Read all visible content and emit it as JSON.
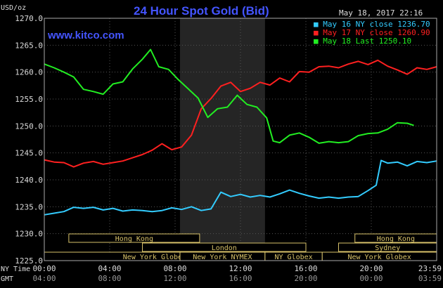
{
  "header": {
    "title": "24 Hour Spot Gold (Bid)",
    "date": "May 18, 2017 22:16",
    "unit": "USD/oz",
    "site": "www.kitco.com"
  },
  "legend": [
    {
      "label": "May 16 NY close 1236.70",
      "color": "#33ccff"
    },
    {
      "label": "May 17 NY close 1260.90",
      "color": "#ff2020"
    },
    {
      "label": "May 18 Last 1250.10",
      "color": "#22ee22"
    }
  ],
  "markets": [
    {
      "label": "Hong Kong",
      "start": 1.5,
      "end": 9.5
    },
    {
      "label": "London",
      "start": 6.0,
      "end": 16.0
    },
    {
      "label": "New York Globex",
      "start": 0.0,
      "end": 13.5
    },
    {
      "label": "New York NYMEX",
      "start": 8.3,
      "end": 13.5
    },
    {
      "label": "NY Globex",
      "start": 13.5,
      "end": 17.0
    },
    {
      "label": "Hong Kong",
      "start": 19.0,
      "end": 24.0
    },
    {
      "label": "Sydney",
      "start": 18.0,
      "end": 24.0
    },
    {
      "label": "New York Globex",
      "start": 17.0,
      "end": 24.0
    }
  ],
  "time_labels": {
    "row1_name": "NY Time",
    "row2_name": "GMT",
    "ny": [
      "00:00",
      "04:00",
      "08:00",
      "12:00",
      "16:00",
      "20:00",
      "23:59"
    ],
    "gmt": [
      "04:00",
      "08:00",
      "12:00",
      "16:00",
      "20:00",
      "00:00",
      "03:59"
    ]
  },
  "chart_data": {
    "type": "line",
    "title": "24 Hour Spot Gold (Bid)",
    "ylabel": "USD/oz",
    "xlim": [
      0,
      24
    ],
    "ylim": [
      1225,
      1270
    ],
    "y_ticks": [
      "1270.0",
      "1265.0",
      "1260.0",
      "1255.0",
      "1250.0",
      "1245.0",
      "1240.0",
      "1235.0",
      "1230.0",
      "1225.0"
    ],
    "grid": true,
    "shaded_hours": [
      8.3,
      13.5
    ],
    "series": [
      {
        "name": "May 16",
        "color": "#33ccff",
        "x": [
          0,
          0.6,
          1.2,
          1.8,
          2.4,
          3.0,
          3.6,
          4.2,
          4.8,
          5.4,
          6.0,
          6.6,
          7.2,
          7.8,
          8.4,
          9.0,
          9.6,
          10.2,
          10.8,
          11.4,
          12.0,
          12.6,
          13.2,
          13.8,
          14.4,
          15.0,
          15.6,
          16.2,
          16.8,
          17.4,
          18.0,
          18.6,
          19.2,
          19.8,
          20.3,
          20.6,
          21.0,
          21.6,
          22.2,
          22.8,
          23.4,
          24.0
        ],
        "values": [
          1233.5,
          1233.8,
          1234.1,
          1234.9,
          1234.7,
          1234.9,
          1234.4,
          1234.7,
          1234.2,
          1234.4,
          1234.3,
          1234.1,
          1234.3,
          1234.8,
          1234.5,
          1235.0,
          1234.3,
          1234.6,
          1237.7,
          1236.9,
          1237.3,
          1236.8,
          1237.1,
          1236.8,
          1237.4,
          1238.1,
          1237.5,
          1237.0,
          1236.6,
          1236.8,
          1236.6,
          1236.8,
          1236.9,
          1238.0,
          1239.0,
          1243.6,
          1243.1,
          1243.3,
          1242.6,
          1243.4,
          1243.2,
          1243.5
        ]
      },
      {
        "name": "May 17",
        "color": "#ff2020",
        "x": [
          0,
          0.6,
          1.2,
          1.8,
          2.4,
          3.0,
          3.6,
          4.2,
          4.8,
          5.4,
          6.0,
          6.6,
          7.2,
          7.8,
          8.4,
          9.0,
          9.6,
          10.2,
          10.8,
          11.4,
          12.0,
          12.6,
          13.2,
          13.8,
          14.4,
          15.0,
          15.6,
          16.2,
          16.8,
          17.4,
          18.0,
          18.6,
          19.2,
          19.8,
          20.4,
          21.0,
          21.6,
          22.2,
          22.8,
          23.4,
          24.0
        ],
        "values": [
          1243.7,
          1243.3,
          1243.2,
          1242.4,
          1243.1,
          1243.4,
          1242.9,
          1243.2,
          1243.5,
          1244.1,
          1244.7,
          1245.5,
          1246.7,
          1245.6,
          1246.1,
          1248.3,
          1253.2,
          1255.1,
          1257.4,
          1258.1,
          1256.4,
          1257.0,
          1258.1,
          1257.6,
          1258.9,
          1258.2,
          1260.1,
          1260.0,
          1261.0,
          1261.1,
          1260.8,
          1261.5,
          1262.0,
          1261.4,
          1262.2,
          1261.1,
          1260.4,
          1259.6,
          1260.8,
          1260.5,
          1261.0
        ]
      },
      {
        "name": "May 18",
        "color": "#22ee22",
        "x": [
          0,
          0.6,
          1.2,
          1.8,
          2.4,
          3.0,
          3.6,
          4.2,
          4.8,
          5.4,
          6.0,
          6.5,
          7.0,
          7.6,
          8.2,
          8.8,
          9.4,
          10.0,
          10.6,
          11.2,
          11.8,
          12.4,
          13.0,
          13.6,
          14.0,
          14.4,
          15.0,
          15.6,
          16.2,
          16.8,
          17.4,
          18.0,
          18.6,
          19.2,
          19.8,
          20.4,
          21.0,
          21.6,
          22.2,
          22.6
        ],
        "values": [
          1261.5,
          1260.8,
          1260.0,
          1259.1,
          1256.8,
          1256.4,
          1255.9,
          1257.8,
          1258.2,
          1260.6,
          1262.4,
          1264.2,
          1261.0,
          1260.5,
          1258.6,
          1256.9,
          1255.2,
          1251.6,
          1253.2,
          1253.5,
          1255.7,
          1254.0,
          1253.5,
          1251.5,
          1247.2,
          1246.9,
          1248.3,
          1248.7,
          1247.9,
          1246.8,
          1247.1,
          1246.9,
          1247.1,
          1248.2,
          1248.6,
          1248.7,
          1249.4,
          1250.6,
          1250.5,
          1250.1
        ]
      }
    ]
  }
}
